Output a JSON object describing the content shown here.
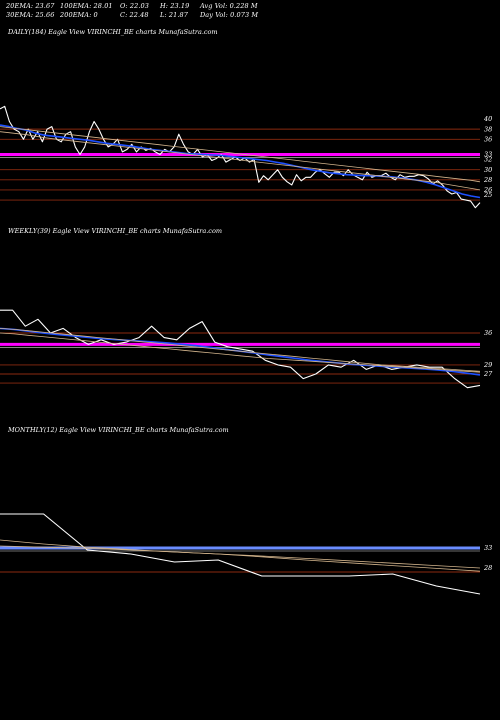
{
  "header": {
    "ema20": "20EMA: 23.67",
    "ema100": "100EMA: 28.01",
    "open": "O: 22.03",
    "high": "H: 23.19",
    "avg_vol": "Avg Vol: 0.228 M",
    "ema30": "30EMA: 25.66",
    "ema200": "200EMA: 0",
    "close": "C: 22.48",
    "low": "L: 21.87",
    "day_vol": "Day Vol: 0.073 M"
  },
  "colors": {
    "background": "#000000",
    "price": "#ffffff",
    "ema_short": "#1e50ff",
    "ema_long": "#d2b48c",
    "support": "#8b2a0f",
    "highlight": "#ff00ff",
    "monthly_level": "#6a8cff"
  },
  "chart_data": [
    {
      "type": "line",
      "title": "DAILY(184) Eagle  View  VIRINCHI_BE charts MunafaSutra.com",
      "ylim": [
        21,
        44
      ],
      "y_ticks": [
        40,
        38,
        36,
        33,
        32,
        30,
        28,
        26,
        25
      ],
      "h_levels": [
        {
          "y": 38,
          "color": "support"
        },
        {
          "y": 36,
          "color": "support"
        },
        {
          "y": 33,
          "color": "highlight"
        },
        {
          "y": 30,
          "color": "support"
        },
        {
          "y": 28,
          "color": "support"
        },
        {
          "y": 26,
          "color": "support"
        },
        {
          "y": 24,
          "color": "support"
        }
      ],
      "series": [
        {
          "color": "price",
          "values": [
            42,
            42.5,
            39.5,
            38,
            37.5,
            36,
            38,
            36,
            37.5,
            35.5,
            38,
            38.5,
            36,
            35.5,
            37,
            37.5,
            34.5,
            33,
            34.5,
            37.5,
            39.5,
            38,
            36,
            34.5,
            35,
            36,
            33.5,
            34,
            35,
            33.5,
            34.5,
            33.8,
            34.2,
            33.5,
            33,
            34,
            33.5,
            34.5,
            37,
            35,
            33.5,
            33,
            34,
            32.5,
            33,
            31.8,
            32.2,
            33,
            31.5,
            32,
            32.5,
            31.8,
            32.3,
            31.5,
            32,
            27.5,
            28.8,
            28,
            29,
            30,
            28.5,
            27.6,
            27,
            29,
            27.8,
            28.5,
            28.5,
            29.5,
            30,
            29.2,
            28.5,
            29.5,
            29.5,
            28.8,
            30,
            29,
            28.5,
            28,
            29.5,
            28.5,
            28.8,
            28.8,
            29.3,
            28.5,
            28,
            29,
            28.5,
            28.7,
            28.7,
            29,
            28.8,
            28.2,
            27.2,
            27.8,
            27,
            25.8,
            25.2,
            25.5,
            24.2,
            24,
            23.8,
            22.5,
            23.5
          ]
        },
        {
          "color": "ema_short",
          "values": [
            38.8,
            38.5,
            38.1,
            37.8,
            37.2,
            36.8,
            36.6,
            36.4,
            36.2,
            36,
            35.8,
            35.5,
            35.2,
            35,
            34.8,
            34.6,
            34.3,
            34,
            33.8,
            33.6,
            33.4,
            33.2,
            33.1,
            33,
            32.9,
            32.8,
            32.6,
            32.4,
            32.2,
            32,
            31.8,
            31.5,
            31.2,
            30.8,
            30.4,
            30,
            29.7,
            29.4,
            29.2,
            29,
            28.9,
            28.8,
            28.8,
            28.7,
            28.6,
            28.4,
            28.2,
            27.9,
            27.5,
            27,
            26.4,
            25.8,
            25.2,
            24.8,
            24.5
          ]
        },
        {
          "color": "ema_long",
          "values": [
            37.5,
            37.3,
            37.1,
            36.9,
            36.6,
            36.3,
            36.1,
            35.9,
            35.7,
            35.5,
            35.3,
            35.1,
            34.9,
            34.7,
            34.5,
            34.3,
            34.1,
            33.9,
            33.7,
            33.5,
            33.3,
            33.1,
            32.9,
            32.7,
            32.5,
            32.3,
            32.1,
            31.9,
            31.7,
            31.5,
            31.3,
            31.1,
            30.9,
            30.7,
            30.5,
            30.3,
            30.1,
            29.9,
            29.7,
            29.5,
            29.3,
            29.1,
            28.9,
            28.7,
            28.5,
            28.3,
            28.1,
            27.9,
            27.7,
            27.5,
            27.2,
            26.9,
            26.6,
            26.3,
            26
          ]
        },
        {
          "color": "ema_long",
          "values": [
            38.5,
            38.3,
            38.1,
            37.9,
            37.7,
            37.5,
            37.3,
            37.1,
            36.9,
            36.7,
            36.5,
            36.3,
            36.1,
            35.9,
            35.7,
            35.5,
            35.3,
            35.1,
            34.9,
            34.7,
            34.5,
            34.3,
            34.1,
            33.9,
            33.7,
            33.5,
            33.3,
            33.1,
            32.9,
            32.7,
            32.5,
            32.3,
            32.1,
            31.9,
            31.7,
            31.5,
            31.3,
            31.1,
            30.9,
            30.7,
            30.5,
            30.3,
            30.1,
            29.9,
            29.7,
            29.5,
            29.3,
            29.1,
            28.9,
            28.7,
            28.5,
            28.3,
            28.1,
            27.9,
            27.6
          ]
        }
      ]
    },
    {
      "type": "line",
      "title": "WEEKLY(39) Eagle  View  VIRINCHI_BE charts MunafaSutra.com",
      "ylim": [
        21,
        44
      ],
      "y_ticks": [
        36,
        29,
        27
      ],
      "h_levels": [
        {
          "y": 36,
          "color": "support"
        },
        {
          "y": 33.5,
          "color": "highlight"
        },
        {
          "y": 29,
          "color": "support"
        },
        {
          "y": 27,
          "color": "support"
        },
        {
          "y": 25,
          "color": "support"
        }
      ],
      "series": [
        {
          "color": "price",
          "values": [
            41,
            41,
            37.5,
            39,
            36,
            37,
            35,
            33.5,
            34.5,
            33.5,
            34,
            35,
            37.5,
            35,
            34.5,
            37,
            38.5,
            34,
            33,
            32.5,
            32,
            30,
            29,
            28.5,
            26,
            27,
            29,
            28.5,
            30,
            28,
            29,
            28,
            28.5,
            29,
            28.5,
            28.5,
            26,
            24,
            24.5
          ]
        },
        {
          "color": "ema_short",
          "values": [
            37,
            36.8,
            36.4,
            36,
            35.7,
            35.4,
            35.1,
            34.8,
            34.6,
            34.4,
            34.2,
            34,
            33.8,
            33.5,
            33.2,
            32.8,
            32.4,
            32,
            31.6,
            31.2,
            30.8,
            30.4,
            30,
            29.7,
            29.4,
            29.1,
            28.9,
            28.7,
            28.5,
            28.3,
            28.1,
            27.9,
            27.6,
            27.2,
            26.8
          ]
        },
        {
          "color": "ema_long",
          "values": [
            36,
            35.8,
            35.5,
            35.2,
            34.9,
            34.6,
            34.3,
            34,
            33.7,
            33.4,
            33.1,
            32.8,
            32.5,
            32.2,
            31.9,
            31.6,
            31.3,
            31,
            30.7,
            30.4,
            30.2,
            30,
            29.8,
            29.6,
            29.4,
            29.2,
            29,
            28.8,
            28.6,
            28.4,
            28.2,
            28,
            27.8,
            27.6,
            27.4
          ]
        },
        {
          "color": "ema_long",
          "values": [
            37,
            36.8,
            36.5,
            36.2,
            35.9,
            35.6,
            35.3,
            35,
            34.7,
            34.4,
            34.1,
            33.8,
            33.5,
            33.2,
            32.9,
            32.6,
            32.3,
            32,
            31.7,
            31.4,
            31.1,
            30.8,
            30.5,
            30.2,
            29.9,
            29.6,
            29.3,
            29,
            28.8,
            28.6,
            28.4,
            28.2,
            28,
            27.8,
            27.6
          ]
        }
      ]
    },
    {
      "type": "line",
      "title": "MONTHLY(12) Eagle  View  VIRINCHI_BE charts MunafaSutra.com",
      "ylim": [
        21,
        44
      ],
      "y_ticks": [
        33,
        28
      ],
      "h_levels": [
        {
          "y": 33,
          "color": "monthly_level"
        },
        {
          "y": 27,
          "color": "support"
        }
      ],
      "series": [
        {
          "color": "price",
          "values": [
            41.5,
            41.5,
            32.5,
            31.5,
            29.5,
            30,
            26,
            26,
            26,
            26.5,
            23.5,
            21.5
          ]
        },
        {
          "color": "ema_long",
          "values": [
            35,
            34,
            33.2,
            32.6,
            32,
            31.5,
            30.8,
            30,
            29.3,
            28.6,
            27.9,
            27.2
          ]
        },
        {
          "color": "ema_long",
          "values": [
            33.5,
            33.2,
            32.9,
            32.5,
            32,
            31.5,
            31,
            30.4,
            29.8,
            29.2,
            28.6,
            28
          ]
        }
      ]
    }
  ]
}
